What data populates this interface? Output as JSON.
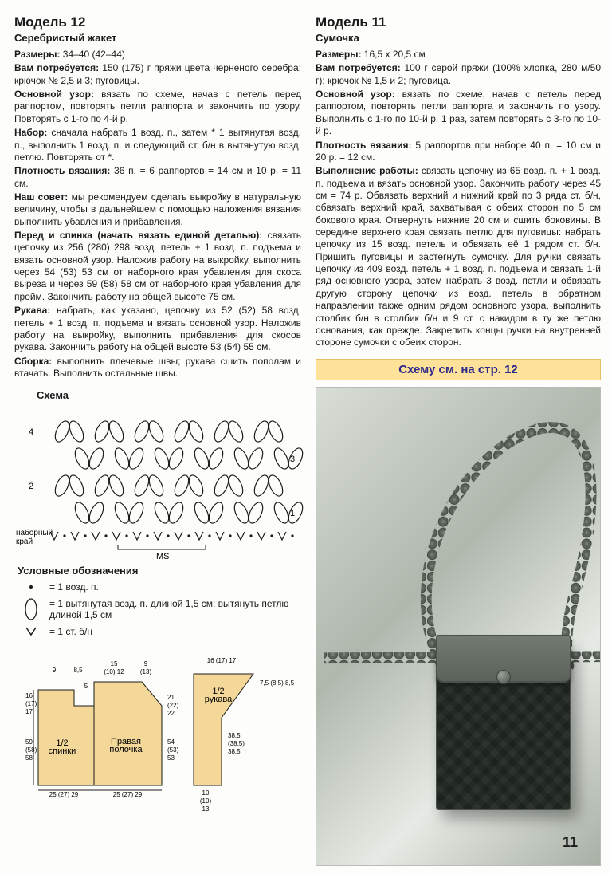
{
  "left": {
    "title": "Модель 12",
    "subtitle": "Серебристый жакет",
    "paras": [
      {
        "label": "Размеры:",
        "text": " 34–40 (42–44)"
      },
      {
        "label": "Вам потребуется:",
        "text": " 150 (175) г пряжи цвета черненого серебра; крючок № 2,5 и 3; пуговицы."
      },
      {
        "label": "Основной узор:",
        "text": " вязать по схеме, начав с петель перед раппортом, повторять петли раппорта и закончить по узору. Повторять с 1-го по 4-й р."
      },
      {
        "label": "Набор:",
        "text": " сначала набрать 1 возд. п., затем * 1 вытянутая возд. п., выполнить 1 возд. п. и следующий ст. б/н в вытянутую возд. петлю. Повторять от *."
      },
      {
        "label": "Плотность вязания:",
        "text": " 36 п. = 6 раппортов = 14 см и 10 р. = 11 см."
      },
      {
        "label": "Наш совет:",
        "text": " мы рекомендуем сделать выкройку в натуральную величину, чтобы в дальнейшем с помощью наложения вязания выполнить убавления и прибавления."
      },
      {
        "label": "Перед и спинка (начать вязать единой деталью):",
        "text": " связать цепочку из 256 (280) 298 возд. петель + 1 возд. п. подъема и вязать основной узор. Наложив работу на выкройку, выполнить через 54 (53) 53 см от наборного края убавления для скоса выреза и через 59 (58) 58 см от наборного края убавления для пройм. Закончить работу на общей высоте 75 см."
      },
      {
        "label": "Рукава:",
        "text": " набрать, как указано, цепочку из 52 (52) 58 возд. петель + 1 возд. п. подъема и вязать основной узор. Наложив работу на выкройку, выполнить прибавления для скосов рукава. Закончить работу на общей высоте 53 (54) 55 см."
      },
      {
        "label": "Сборка:",
        "text": " выполнить плечевые швы; рукава сшить пополам и втачать. Выполнить остальные швы."
      }
    ],
    "schemaTitle": "Схема",
    "schema": {
      "rows": 4,
      "ovalsPerRow": 6,
      "rowLabels": [
        "4",
        "3",
        "2",
        "1"
      ],
      "sideLabel": "наборный\nкрай",
      "msLabel": "MS",
      "colors": {
        "stroke": "#1a1a1a",
        "fill": "#ffffff"
      }
    },
    "legendTitle": "Условные обозначения",
    "legend": [
      {
        "sym": "dot",
        "text": "= 1 возд. п."
      },
      {
        "sym": "oval",
        "text": "= 1 вытянутая возд. п. длиной 1,5 см: вытянуть петлю длиной 1,5 см"
      },
      {
        "sym": "vee",
        "text": "= 1 ст. б/н"
      }
    ],
    "pattern": {
      "fill": "#f4d89a",
      "stroke": "#1a1a1a",
      "labels": {
        "back": "1/2\nспинки",
        "front": "Правая\nполочка",
        "sleeve": "1/2\nрукава"
      },
      "dims": {
        "topBack1": "9",
        "topBack2": "8,5",
        "topFront1": "15",
        "topFront2": "9",
        "topFrontAlt1": "(10) 12",
        "topFrontAlt2": "(13)",
        "sleeveTop": "16 (17) 17",
        "sleeveSide": "7,5 (8,5) 8,5",
        "sleeveH": "38,5\n(38,5)\n38,5",
        "sleeveBot": "10\n(10)\n13",
        "leftH1": "16\n(17)\n17",
        "leftH2": "59\n(58)\n58",
        "rightH1": "21\n(22)\n22",
        "rightH2": "54\n(53)\n53",
        "bottomBack": "25 (27) 29",
        "bottomFront": "25 (27) 29",
        "gap": "5"
      }
    }
  },
  "right": {
    "title": "Модель 11",
    "subtitle": "Сумочка",
    "paras": [
      {
        "label": "Размеры:",
        "text": " 16,5 x 20,5 см"
      },
      {
        "label": "Вам потребуется:",
        "text": " 100 г серой пряжи (100% хлопка, 280 м/50 г); крючок № 1,5 и 2; пуговица."
      },
      {
        "label": "Основной узор:",
        "text": " вязать по схеме, начав с петель перед раппортом, повторять петли раппорта и закончить по узору. Выполнить с 1-го по 10-й р. 1 раз, затем повторять с 3-го по 10-й р."
      },
      {
        "label": "Плотность вязания:",
        "text": " 5 раппортов при наборе 40 п. = 10 см и 20 р. = 12 см."
      },
      {
        "label": "Выполнение работы:",
        "text": " связать цепочку из 65 возд. п. + 1 возд. п. подъема и вязать основной узор. Закончить работу через 45 см = 74 р. Обвязать верхний и нижний край по 3 ряда ст. б/н, обвязать верхний край, захватывая с обеих сторон по 5 см бокового края. Отвернуть нижние 20 см и сшить боковины. В середине верхнего края связать петлю для пуговицы: набрать цепочку из 15 возд. петель и обвязать её 1 рядом ст. б/н. Пришить пуговицы и застегнуть сумочку. Для ручки связать цепочку из 409 возд. петель + 1 возд. п. подъема и связать 1-й ряд основного узора, затем набрать 3 возд. петли и обвязать другую сторону цепочки из возд. петель в обратном направлении также одним рядом основного узора, выполнить столбик б/н в столбик б/н и 9 ст. с накидом в ту же петлю основания, как прежде. Закрепить концы ручки на внутренней стороне сумочки с обеих сторон."
      }
    ],
    "banner": "Схему см. на стр. 12",
    "pageNumber": "11"
  }
}
